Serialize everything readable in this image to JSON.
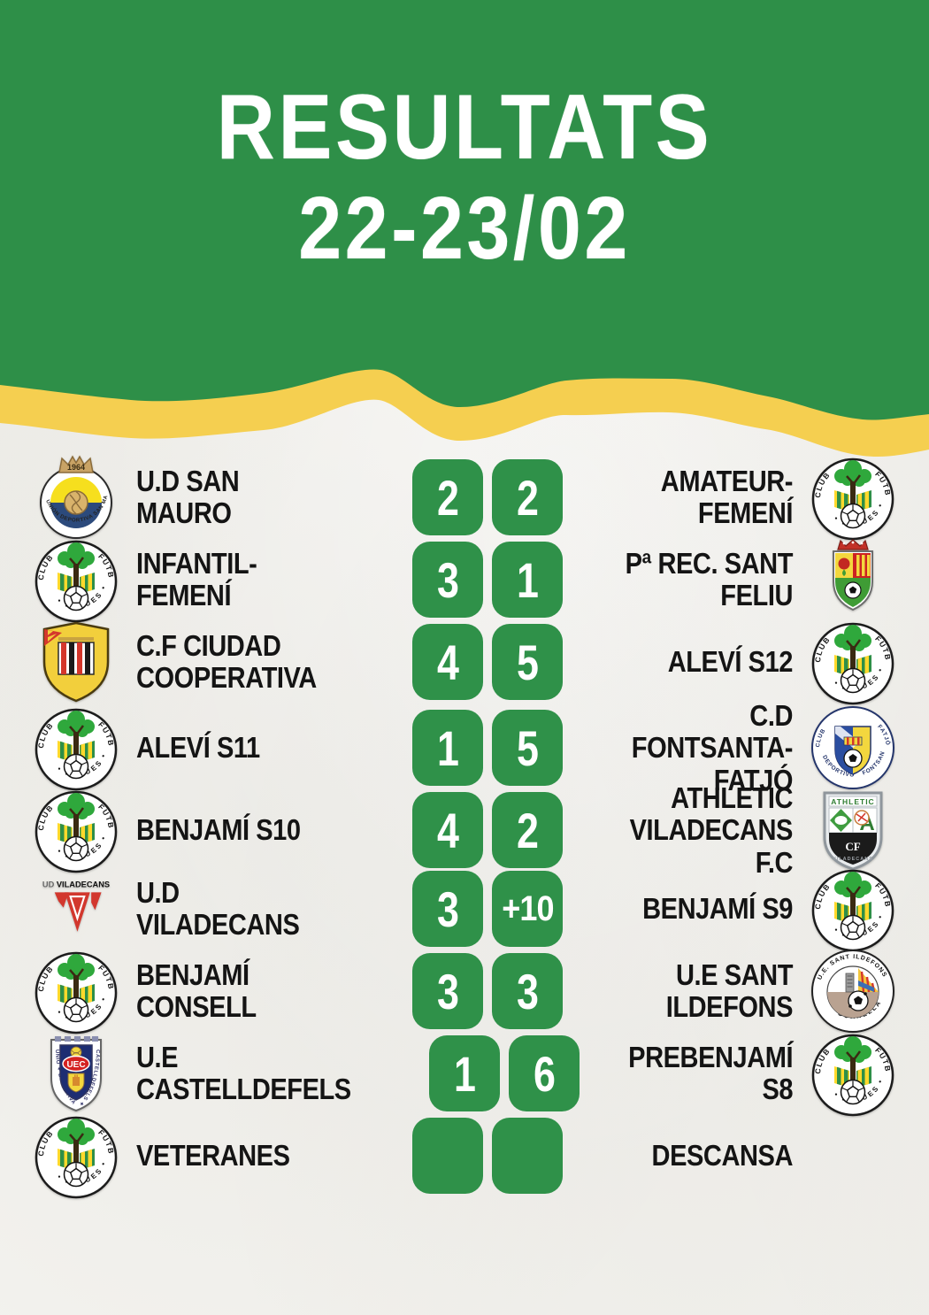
{
  "header": {
    "title_line1": "RESULTATS",
    "title_line2": "22-23/02"
  },
  "colors": {
    "green": "#2e8f48",
    "yellow": "#f5cf50",
    "paper": "#f3f2ee",
    "scorebox": "#2f9149",
    "ink": "#141414",
    "scoretext": "#ffffff"
  },
  "matches": [
    {
      "home": {
        "name": "U.D SAN\nMAURO",
        "logo": "ud-san-mauro"
      },
      "scores": [
        "2",
        "2"
      ],
      "away": {
        "name": "AMATEUR-\nFEMENÍ",
        "logo": "cf-begues"
      }
    },
    {
      "home": {
        "name": "INFANTIL-\nFEMENÍ",
        "logo": "cf-begues"
      },
      "scores": [
        "3",
        "1"
      ],
      "away": {
        "name": "Pª REC. SANT\nFELIU",
        "logo": "sant-feliu"
      }
    },
    {
      "home": {
        "name": "C.F CIUDAD\nCOOPERATIVA",
        "logo": "ciudad-cooperativa"
      },
      "scores": [
        "4",
        "5"
      ],
      "away": {
        "name": "ALEVÍ S12",
        "logo": "cf-begues"
      }
    },
    {
      "home": {
        "name": "ALEVÍ S11",
        "logo": "cf-begues"
      },
      "scores": [
        "1",
        "5"
      ],
      "away": {
        "name": "C.D\nFONTSANTA-\nFATJÓ",
        "logo": "fontsanta-fatjo"
      }
    },
    {
      "home": {
        "name": "BENJAMÍ S10",
        "logo": "cf-begues"
      },
      "scores": [
        "4",
        "2"
      ],
      "away": {
        "name": "ATHLETIC\nVILADECANS F.C",
        "logo": "athletic-viladecans"
      }
    },
    {
      "home": {
        "name": "U.D\nVILADECANS",
        "logo": "ud-viladecans"
      },
      "scores": [
        "3",
        "+10"
      ],
      "away": {
        "name": "BENJAMÍ S9",
        "logo": "cf-begues"
      }
    },
    {
      "home": {
        "name": "BENJAMÍ\nCONSELL",
        "logo": "cf-begues"
      },
      "scores": [
        "3",
        "3"
      ],
      "away": {
        "name": "U.E SANT\nILDEFONS",
        "logo": "ue-sant-ildefons"
      }
    },
    {
      "home": {
        "name": "U.E\nCASTELLDEFELS",
        "logo": "ue-castelldefels"
      },
      "scores": [
        "1",
        "6"
      ],
      "away": {
        "name": "PREBENJAMÍ S8",
        "logo": "cf-begues"
      }
    },
    {
      "home": {
        "name": "VETERANES",
        "logo": "cf-begues"
      },
      "scores": [
        "",
        ""
      ],
      "away": {
        "name": "DESCANSA",
        "logo": null
      }
    }
  ]
}
